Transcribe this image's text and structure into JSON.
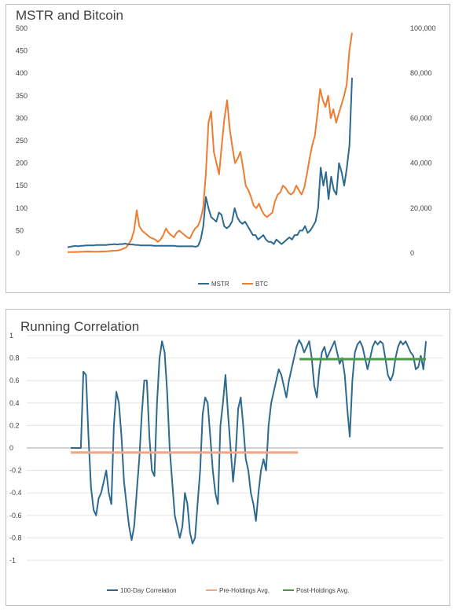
{
  "chart_data": [
    {
      "type": "line",
      "title": "MSTR and Bitcoin",
      "y_left": {
        "ticks": [
          "0",
          "50",
          "100",
          "150",
          "200",
          "250",
          "300",
          "350",
          "400",
          "450",
          "500"
        ],
        "range": [
          0,
          500
        ]
      },
      "y_right": {
        "ticks": [
          "0",
          "20,000",
          "40,000",
          "60,000",
          "80,000",
          "100,000"
        ],
        "range": [
          0,
          100000
        ]
      },
      "grid": false,
      "legend_position": "bottom",
      "series": [
        {
          "name": "MSTR",
          "axis": "left",
          "color": "#2e6a8f",
          "values": [
            13,
            14,
            15,
            16,
            15,
            16,
            16,
            17,
            17,
            17,
            17,
            18,
            18,
            18,
            18,
            18,
            19,
            19,
            20,
            19,
            20,
            20,
            21,
            20,
            19,
            19,
            18,
            18,
            17,
            17,
            17,
            17,
            17,
            16,
            16,
            16,
            16,
            16,
            16,
            16,
            16,
            16,
            15,
            15,
            15,
            15,
            15,
            15,
            15,
            14,
            16,
            30,
            60,
            125,
            100,
            80,
            75,
            70,
            90,
            85,
            60,
            55,
            60,
            70,
            100,
            80,
            70,
            65,
            70,
            60,
            50,
            40,
            40,
            30,
            35,
            40,
            30,
            25,
            25,
            20,
            30,
            25,
            20,
            25,
            30,
            35,
            30,
            40,
            40,
            50,
            50,
            60,
            45,
            50,
            60,
            70,
            100,
            190,
            150,
            180,
            120,
            170,
            140,
            130,
            200,
            180,
            150,
            190,
            240,
            390
          ]
        },
        {
          "name": "BTC",
          "axis": "right",
          "color": "#ed7d31",
          "values": [
            400,
            420,
            450,
            480,
            500,
            550,
            600,
            650,
            700,
            650,
            600,
            600,
            650,
            700,
            750,
            800,
            900,
            1000,
            1100,
            1200,
            1500,
            2000,
            2500,
            4000,
            6000,
            10000,
            19000,
            12000,
            10000,
            9000,
            8000,
            7000,
            6500,
            6000,
            5000,
            6000,
            8000,
            11000,
            9000,
            8000,
            7000,
            9000,
            10000,
            9000,
            8000,
            7000,
            6500,
            9000,
            11000,
            12000,
            15000,
            20000,
            35000,
            58000,
            63000,
            45000,
            40000,
            35000,
            48000,
            60000,
            68000,
            55000,
            47000,
            40000,
            42000,
            45000,
            38000,
            30000,
            28000,
            25000,
            21000,
            20000,
            22000,
            19000,
            17000,
            16000,
            17000,
            18000,
            23000,
            26000,
            27000,
            30000,
            29000,
            27000,
            26000,
            27000,
            30000,
            28000,
            26000,
            29000,
            35000,
            42000,
            48000,
            52000,
            62000,
            73000,
            68000,
            65000,
            70000,
            60000,
            64000,
            58000,
            62000,
            66000,
            70000,
            75000,
            90000,
            98000
          ]
        }
      ]
    },
    {
      "type": "line",
      "title": "Running Correlation",
      "y": {
        "ticks": [
          "-1",
          "-0.8",
          "-0.6",
          "-0.4",
          "-0.2",
          "0",
          "0.2",
          "0.4",
          "0.6",
          "0.8",
          "1"
        ],
        "range": [
          -1,
          1
        ]
      },
      "grid": true,
      "legend_position": "bottom",
      "series": [
        {
          "name": "100-Day Correlation",
          "color": "#2e6a8f",
          "values": [
            0,
            0,
            0,
            0,
            0,
            0.68,
            0.65,
            0.1,
            -0.35,
            -0.55,
            -0.6,
            -0.45,
            -0.4,
            -0.3,
            -0.2,
            -0.4,
            -0.5,
            0.2,
            0.5,
            0.4,
            0.1,
            -0.3,
            -0.5,
            -0.7,
            -0.82,
            -0.7,
            -0.4,
            -0.1,
            0.3,
            0.6,
            0.6,
            0.1,
            -0.2,
            -0.25,
            0.4,
            0.8,
            0.95,
            0.85,
            0.5,
            0.0,
            -0.3,
            -0.6,
            -0.7,
            -0.8,
            -0.7,
            -0.4,
            -0.5,
            -0.75,
            -0.85,
            -0.8,
            -0.5,
            -0.2,
            0.3,
            0.45,
            0.4,
            0.1,
            -0.2,
            -0.4,
            -0.5,
            0.2,
            0.4,
            0.65,
            0.3,
            0.0,
            -0.3,
            -0.05,
            0.35,
            0.45,
            0.2,
            -0.1,
            -0.2,
            -0.4,
            -0.5,
            -0.65,
            -0.4,
            -0.2,
            -0.1,
            -0.2,
            0.2,
            0.4,
            0.5,
            0.6,
            0.7,
            0.65,
            0.55,
            0.45,
            0.6,
            0.7,
            0.8,
            0.9,
            0.96,
            0.92,
            0.85,
            0.9,
            0.95,
            0.8,
            0.55,
            0.45,
            0.7,
            0.85,
            0.9,
            0.8,
            0.85,
            0.9,
            0.95,
            0.85,
            0.75,
            0.8,
            0.65,
            0.35,
            0.1,
            0.6,
            0.85,
            0.92,
            0.95,
            0.9,
            0.8,
            0.7,
            0.8,
            0.9,
            0.95,
            0.92,
            0.95,
            0.93,
            0.8,
            0.65,
            0.6,
            0.65,
            0.8,
            0.9,
            0.95,
            0.92,
            0.95,
            0.9,
            0.85,
            0.82,
            0.7,
            0.72,
            0.82,
            0.7,
            0.95
          ]
        },
        {
          "name": "Pre-Holdings Avg.",
          "color": "#f4a582",
          "segment": {
            "x_start_frac": 0.0,
            "x_end_frac": 0.6,
            "value": -0.04
          }
        },
        {
          "name": "Post-Holdings Avg.",
          "color": "#4a9a4a",
          "segment": {
            "x_start_frac": 0.6,
            "x_end_frac": 1.0,
            "value": 0.79
          }
        }
      ]
    }
  ]
}
